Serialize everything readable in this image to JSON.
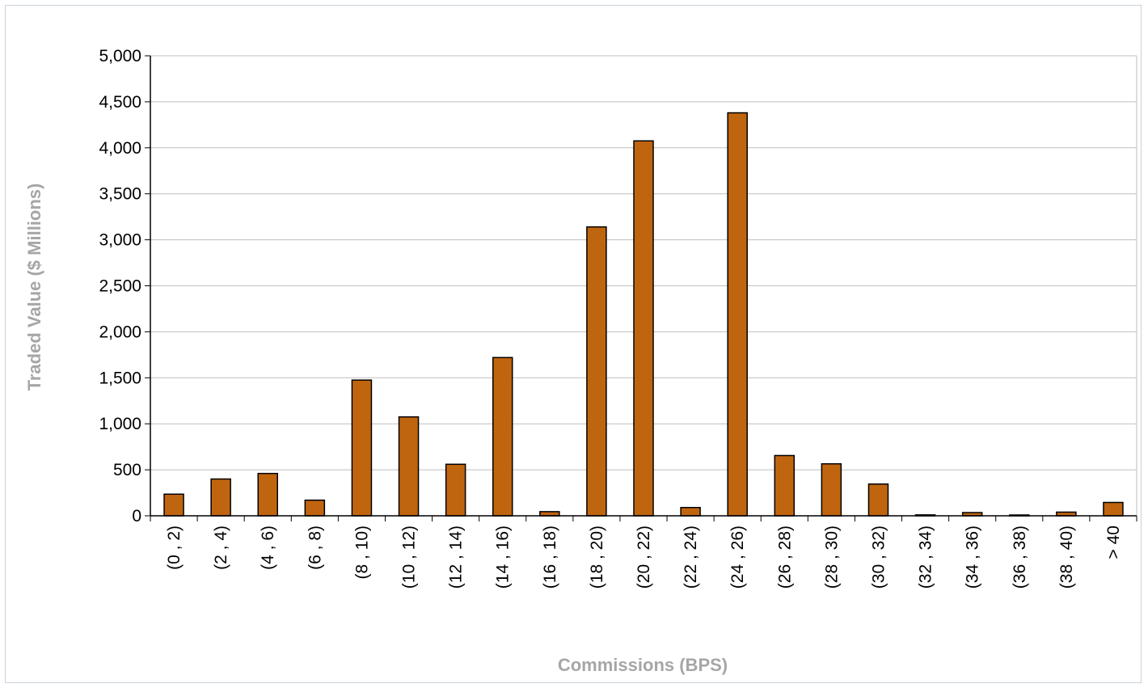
{
  "chart_data": {
    "type": "bar",
    "xlabel": "Commissions (BPS)",
    "ylabel": "Traded Value ($ Millions)",
    "ylim": [
      0,
      5000
    ],
    "y_ticks": [
      "0",
      "500",
      "1,000",
      "1,500",
      "2,000",
      "2,500",
      "3,000",
      "3,500",
      "4,000",
      "4,500",
      "5,000"
    ],
    "grid": true,
    "legend": "none",
    "bar_color": "#c0650f",
    "categories": [
      "(0 , 2)",
      "(2 , 4)",
      "(4 , 6)",
      "(6 , 8)",
      "(8 , 10)",
      "(10 , 12)",
      "(12 , 14)",
      "(14 , 16)",
      "(16 , 18)",
      "(18 , 20)",
      "(20 , 22)",
      "(22 , 24)",
      "(24 , 26)",
      "(26 , 28)",
      "(28 , 30)",
      "(30 , 32)",
      "(32 , 34)",
      "(34 , 36)",
      "(36 , 38)",
      "(38 , 40)",
      "> 40"
    ],
    "values": [
      235,
      400,
      460,
      170,
      1475,
      1075,
      560,
      1720,
      45,
      3140,
      4075,
      90,
      4380,
      655,
      565,
      345,
      10,
      35,
      5,
      40,
      145
    ]
  }
}
